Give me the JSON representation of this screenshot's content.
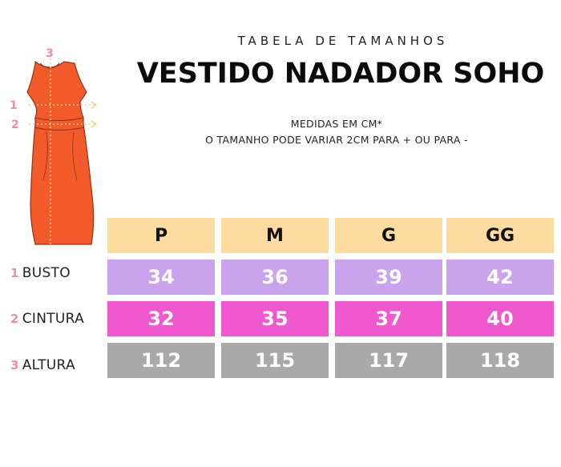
{
  "header": {
    "subtitle": "TABELA DE TAMANHOS",
    "title": "VESTIDO NADADOR SOHO",
    "note_line1": "MEDIDAS EM CM*",
    "note_line2": "O TAMANHO PODE VARIAR 2CM PARA + OU PARA -"
  },
  "illustration": {
    "dress_color": "#f25a2c",
    "markers": [
      "1",
      "2",
      "3"
    ]
  },
  "table": {
    "sizes": [
      "P",
      "M",
      "G",
      "GG"
    ],
    "rows": [
      {
        "num": "1",
        "label": "BUSTO",
        "values": [
          "34",
          "36",
          "39",
          "42"
        ],
        "color": "#c9a3ec"
      },
      {
        "num": "2",
        "label": "CINTURA",
        "values": [
          "32",
          "35",
          "37",
          "40"
        ],
        "color": "#f058cf"
      },
      {
        "num": "3",
        "label": "ALTURA",
        "values": [
          "112",
          "115",
          "117",
          "118"
        ],
        "color": "#a9a9a9"
      }
    ],
    "header_color": "#fbdc9e"
  }
}
